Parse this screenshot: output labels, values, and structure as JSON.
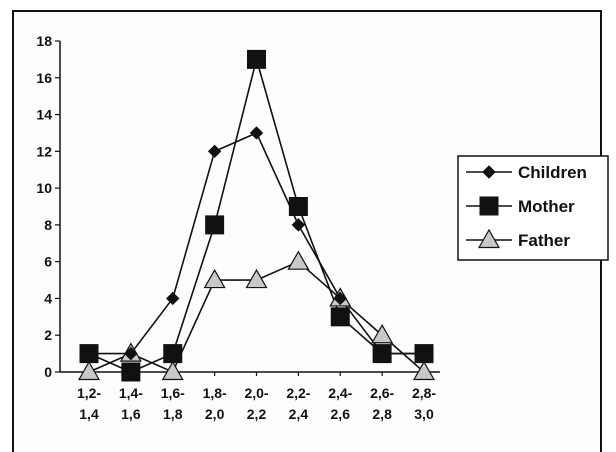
{
  "chart_data": {
    "type": "line",
    "categories": [
      [
        "1,2-",
        "1,4"
      ],
      [
        "1,4-",
        "1,6"
      ],
      [
        "1,6-",
        "1,8"
      ],
      [
        "1,8-",
        "2,0"
      ],
      [
        "2,0-",
        "2,2"
      ],
      [
        "2,2-",
        "2,4"
      ],
      [
        "2,4-",
        "2,6"
      ],
      [
        "2,6-",
        "2,8"
      ],
      [
        "2,8-",
        "3,0"
      ]
    ],
    "ylim": [
      0,
      18
    ],
    "yticks": [
      0,
      2,
      4,
      6,
      8,
      10,
      12,
      14,
      16,
      18
    ],
    "grid": false,
    "legend_position": "right",
    "series": [
      {
        "name": "Children",
        "marker": "diamond",
        "values": [
          1,
          1,
          4,
          12,
          13,
          8,
          4,
          1,
          1
        ]
      },
      {
        "name": "Mother",
        "marker": "square",
        "values": [
          1,
          0,
          1,
          8,
          17,
          9,
          3,
          1,
          1
        ]
      },
      {
        "name": "Father",
        "marker": "triangle",
        "values": [
          0,
          1,
          0,
          5,
          5,
          6,
          4,
          2,
          0
        ]
      }
    ],
    "colors": {
      "line": "#111111",
      "marker_fill": "#111111",
      "triangle_fill": "#c8c8c8"
    }
  }
}
